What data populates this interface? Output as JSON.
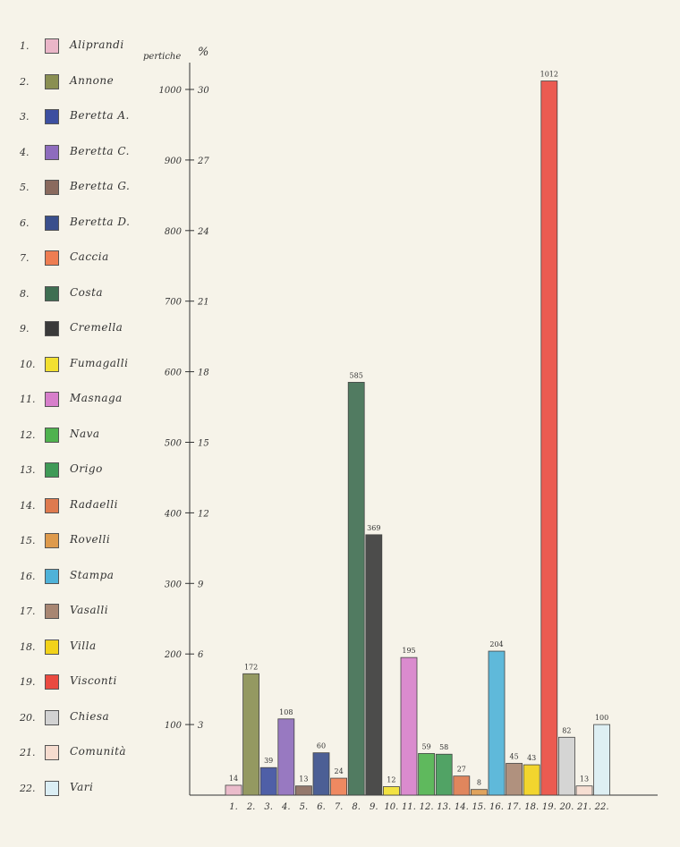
{
  "chart_data": {
    "type": "bar",
    "y_unit_left": "pertiche",
    "y_unit_right": "%",
    "ylim": [
      0,
      1000
    ],
    "y_ticks_left": [
      "100",
      "200",
      "300",
      "400",
      "500",
      "600",
      "700",
      "800",
      "900",
      "1000"
    ],
    "y_ticks_right": [
      "3",
      "6",
      "9",
      "12",
      "15",
      "18",
      "21",
      "24",
      "27",
      "30"
    ],
    "categories": [
      "1.",
      "2.",
      "3.",
      "4.",
      "5.",
      "6.",
      "7.",
      "8.",
      "9.",
      "10.",
      "11.",
      "12.",
      "13.",
      "14.",
      "15.",
      "16.",
      "17.",
      "18.",
      "19.",
      "20.",
      "21.",
      "22."
    ],
    "legend": [
      {
        "num": "1.",
        "name": "Aliprandi",
        "color": "#eab6c8"
      },
      {
        "num": "2.",
        "name": "Annone",
        "color": "#8a8f52"
      },
      {
        "num": "3.",
        "name": "Beretta A.",
        "color": "#3d4fa0"
      },
      {
        "num": "4.",
        "name": "Beretta C.",
        "color": "#8e6cbd"
      },
      {
        "num": "5.",
        "name": "Beretta G.",
        "color": "#8a6a5e"
      },
      {
        "num": "6.",
        "name": "Beretta D.",
        "color": "#3a4f8c"
      },
      {
        "num": "7.",
        "name": "Caccia",
        "color": "#ee7d52"
      },
      {
        "num": "8.",
        "name": "Costa",
        "color": "#3f6e52"
      },
      {
        "num": "9.",
        "name": "Cremella",
        "color": "#3a3a3a"
      },
      {
        "num": "10.",
        "name": "Fumagalli",
        "color": "#f2e030"
      },
      {
        "num": "11.",
        "name": "Masnaga",
        "color": "#d77fcb"
      },
      {
        "num": "12.",
        "name": "Nava",
        "color": "#4fb24e"
      },
      {
        "num": "13.",
        "name": "Origo",
        "color": "#3f9a57"
      },
      {
        "num": "14.",
        "name": "Radaelli",
        "color": "#de7a4e"
      },
      {
        "num": "15.",
        "name": "Rovelli",
        "color": "#de9a4c"
      },
      {
        "num": "16.",
        "name": "Stampa",
        "color": "#4fb2d8"
      },
      {
        "num": "17.",
        "name": "Vasalli",
        "color": "#a88672"
      },
      {
        "num": "18.",
        "name": "Villa",
        "color": "#f2d21a"
      },
      {
        "num": "19.",
        "name": "Visconti",
        "color": "#ea4a40"
      },
      {
        "num": "20.",
        "name": "Chiesa",
        "color": "#d2d2d2"
      },
      {
        "num": "21.",
        "name": "Comunità",
        "color": "#f6dccf"
      },
      {
        "num": "22.",
        "name": "Vari",
        "color": "#dbeef4"
      }
    ],
    "values": [
      14,
      172,
      39,
      108,
      13,
      60,
      24,
      585,
      369,
      12,
      195,
      59,
      58,
      27,
      8,
      204,
      45,
      43,
      1012,
      82,
      13,
      100
    ]
  }
}
